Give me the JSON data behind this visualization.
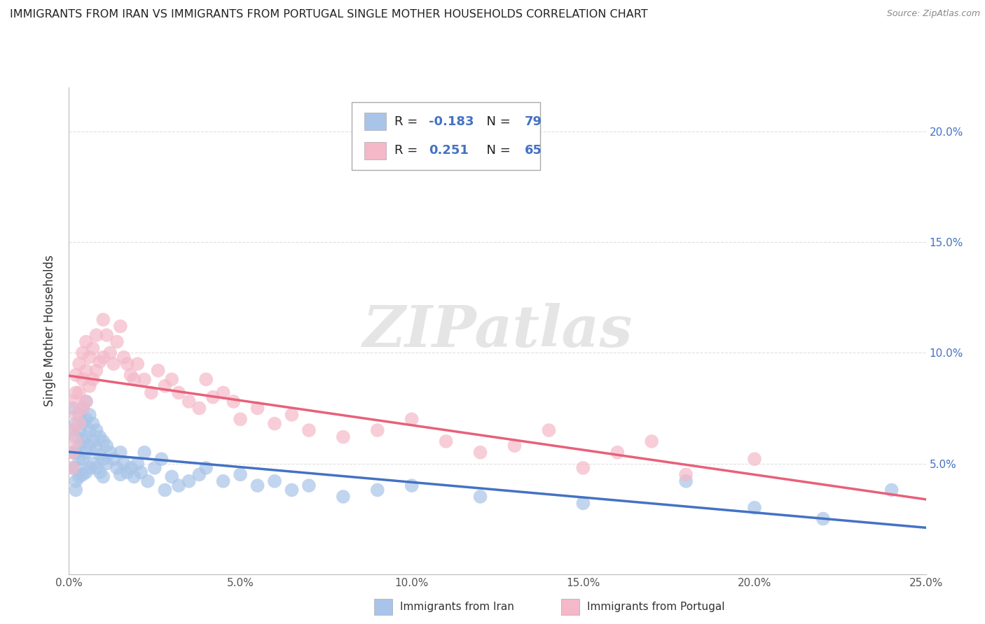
{
  "title": "IMMIGRANTS FROM IRAN VS IMMIGRANTS FROM PORTUGAL SINGLE MOTHER HOUSEHOLDS CORRELATION CHART",
  "source": "Source: ZipAtlas.com",
  "ylabel": "Single Mother Households",
  "iran_label": "Immigrants from Iran",
  "portugal_label": "Immigrants from Portugal",
  "iran_color": "#a8c4e8",
  "iran_line_color": "#4472C4",
  "portugal_color": "#f4b8c8",
  "portugal_line_color": "#e8607a",
  "iran_R": -0.183,
  "iran_N": 79,
  "portugal_R": 0.251,
  "portugal_N": 65,
  "xlim": [
    0.0,
    0.25
  ],
  "ylim": [
    0.0,
    0.22
  ],
  "iran_x": [
    0.001,
    0.001,
    0.001,
    0.001,
    0.002,
    0.002,
    0.002,
    0.002,
    0.002,
    0.002,
    0.003,
    0.003,
    0.003,
    0.003,
    0.003,
    0.004,
    0.004,
    0.004,
    0.004,
    0.004,
    0.005,
    0.005,
    0.005,
    0.005,
    0.005,
    0.006,
    0.006,
    0.006,
    0.006,
    0.007,
    0.007,
    0.007,
    0.008,
    0.008,
    0.008,
    0.009,
    0.009,
    0.009,
    0.01,
    0.01,
    0.01,
    0.011,
    0.011,
    0.012,
    0.013,
    0.014,
    0.015,
    0.015,
    0.016,
    0.017,
    0.018,
    0.019,
    0.02,
    0.021,
    0.022,
    0.023,
    0.025,
    0.027,
    0.028,
    0.03,
    0.032,
    0.035,
    0.038,
    0.04,
    0.045,
    0.05,
    0.055,
    0.06,
    0.065,
    0.07,
    0.08,
    0.09,
    0.1,
    0.12,
    0.15,
    0.18,
    0.2,
    0.22,
    0.24
  ],
  "iran_y": [
    0.075,
    0.065,
    0.055,
    0.048,
    0.068,
    0.062,
    0.055,
    0.048,
    0.042,
    0.038,
    0.072,
    0.065,
    0.058,
    0.052,
    0.044,
    0.075,
    0.068,
    0.06,
    0.052,
    0.045,
    0.078,
    0.07,
    0.062,
    0.055,
    0.046,
    0.072,
    0.065,
    0.058,
    0.048,
    0.068,
    0.06,
    0.05,
    0.065,
    0.057,
    0.048,
    0.062,
    0.054,
    0.046,
    0.06,
    0.052,
    0.044,
    0.058,
    0.05,
    0.055,
    0.052,
    0.048,
    0.055,
    0.045,
    0.05,
    0.046,
    0.048,
    0.044,
    0.05,
    0.046,
    0.055,
    0.042,
    0.048,
    0.052,
    0.038,
    0.044,
    0.04,
    0.042,
    0.045,
    0.048,
    0.042,
    0.045,
    0.04,
    0.042,
    0.038,
    0.04,
    0.035,
    0.038,
    0.04,
    0.035,
    0.032,
    0.042,
    0.03,
    0.025,
    0.038
  ],
  "portugal_x": [
    0.001,
    0.001,
    0.001,
    0.001,
    0.002,
    0.002,
    0.002,
    0.002,
    0.003,
    0.003,
    0.003,
    0.004,
    0.004,
    0.004,
    0.005,
    0.005,
    0.005,
    0.006,
    0.006,
    0.007,
    0.007,
    0.008,
    0.008,
    0.009,
    0.01,
    0.01,
    0.011,
    0.012,
    0.013,
    0.014,
    0.015,
    0.016,
    0.017,
    0.018,
    0.019,
    0.02,
    0.022,
    0.024,
    0.026,
    0.028,
    0.03,
    0.032,
    0.035,
    0.038,
    0.04,
    0.042,
    0.045,
    0.048,
    0.05,
    0.055,
    0.06,
    0.065,
    0.07,
    0.08,
    0.09,
    0.1,
    0.11,
    0.12,
    0.13,
    0.14,
    0.15,
    0.16,
    0.17,
    0.18,
    0.2
  ],
  "portugal_y": [
    0.078,
    0.065,
    0.055,
    0.048,
    0.09,
    0.082,
    0.072,
    0.06,
    0.095,
    0.082,
    0.068,
    0.1,
    0.088,
    0.075,
    0.105,
    0.092,
    0.078,
    0.098,
    0.085,
    0.102,
    0.088,
    0.108,
    0.092,
    0.096,
    0.115,
    0.098,
    0.108,
    0.1,
    0.095,
    0.105,
    0.112,
    0.098,
    0.095,
    0.09,
    0.088,
    0.095,
    0.088,
    0.082,
    0.092,
    0.085,
    0.088,
    0.082,
    0.078,
    0.075,
    0.088,
    0.08,
    0.082,
    0.078,
    0.07,
    0.075,
    0.068,
    0.072,
    0.065,
    0.062,
    0.065,
    0.07,
    0.06,
    0.055,
    0.058,
    0.065,
    0.048,
    0.055,
    0.06,
    0.045,
    0.052
  ],
  "watermark": "ZIPatlas",
  "background_color": "#ffffff",
  "grid_color": "#cccccc",
  "legend_iran_line1": "R = ",
  "legend_iran_val1": "-0.183",
  "legend_iran_line2": "  N = ",
  "legend_iran_val2": "79",
  "legend_port_val1": "0.251",
  "legend_port_val2": "65"
}
